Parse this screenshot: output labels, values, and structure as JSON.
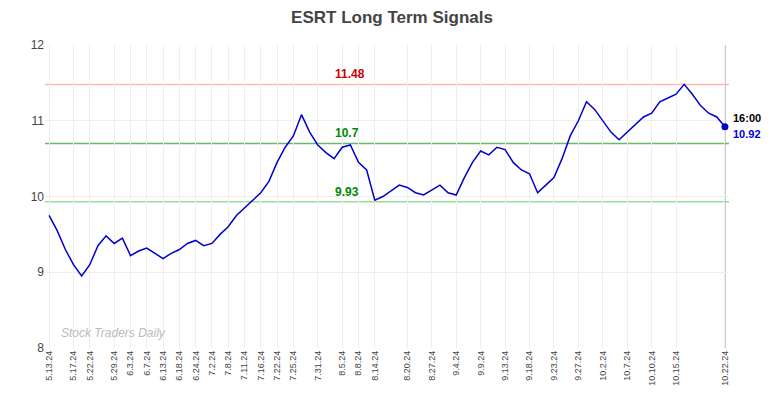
{
  "chart_data": {
    "type": "line",
    "title": "ESRT Long Term Signals",
    "categories": [
      "5.13.24",
      null,
      null,
      "5.17.24",
      null,
      "5.22.24",
      null,
      null,
      "5.29.24",
      null,
      "6.3.24",
      null,
      "6.7.24",
      null,
      "6.13.24",
      null,
      "6.18.24",
      null,
      "6.24.24",
      null,
      "7.2.24",
      null,
      "7.8.24",
      null,
      "7.11.24",
      null,
      "7.16.24",
      null,
      "7.22.24",
      null,
      "7.25.24",
      null,
      null,
      "7.31.24",
      null,
      null,
      "8.5.24",
      null,
      "8.8.24",
      null,
      "8.14.24",
      null,
      null,
      null,
      "8.20.24",
      null,
      null,
      "8.27.24",
      null,
      null,
      "9.4.24",
      null,
      null,
      "9.9.24",
      null,
      null,
      "9.13.24",
      null,
      null,
      "9.18.24",
      null,
      null,
      "9.23.24",
      null,
      null,
      "9.27.24",
      null,
      null,
      "10.2.24",
      null,
      null,
      "10.7.24",
      null,
      null,
      "10.10.24",
      null,
      null,
      "10.15.24",
      null,
      null,
      null,
      null,
      null,
      "10.22.24"
    ],
    "values": [
      9.75,
      9.55,
      9.3,
      9.1,
      8.95,
      9.1,
      9.35,
      9.48,
      9.38,
      9.45,
      9.22,
      9.28,
      9.32,
      9.25,
      9.18,
      9.25,
      9.3,
      9.38,
      9.42,
      9.35,
      9.38,
      9.5,
      9.6,
      9.75,
      9.85,
      9.95,
      10.05,
      10.2,
      10.45,
      10.65,
      10.8,
      11.08,
      10.85,
      10.68,
      10.58,
      10.5,
      10.65,
      10.68,
      10.45,
      10.35,
      9.95,
      10.0,
      10.08,
      10.15,
      10.12,
      10.05,
      10.02,
      10.08,
      10.15,
      10.05,
      10.02,
      10.25,
      10.45,
      10.6,
      10.55,
      10.65,
      10.62,
      10.45,
      10.35,
      10.3,
      10.05,
      10.15,
      10.25,
      10.5,
      10.8,
      11.0,
      11.25,
      11.15,
      11.0,
      10.85,
      10.75,
      10.85,
      10.95,
      11.05,
      11.1,
      11.25,
      11.3,
      11.35,
      11.48,
      11.35,
      11.2,
      11.1,
      11.05,
      10.92
    ],
    "color": "#0000cc",
    "ylim": [
      8,
      12
    ],
    "yticks": [
      8,
      9,
      10,
      11,
      12
    ],
    "grid": true,
    "hlines": [
      {
        "value": 11.48,
        "label": "11.48",
        "color": "#ffb3b3",
        "label_color": "#cc0000"
      },
      {
        "value": 10.7,
        "label": "10.7",
        "color": "#66bb66",
        "label_color": "#008800"
      },
      {
        "value": 9.93,
        "label": "9.93",
        "color": "#99dd99",
        "label_color": "#008800"
      }
    ],
    "annotations": [
      {
        "text": "16:00",
        "color": "#000000"
      },
      {
        "text": "10.92",
        "color": "#0000dd"
      }
    ],
    "watermark": "Stock Traders Daily"
  }
}
